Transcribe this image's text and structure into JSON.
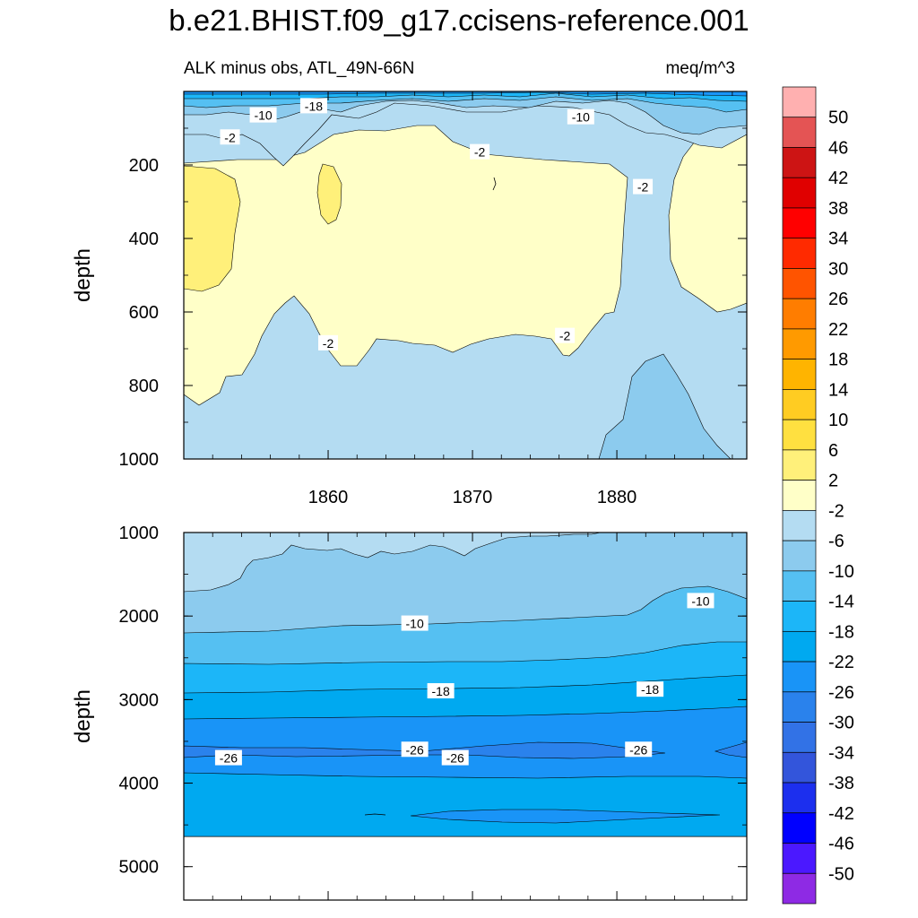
{
  "title": "b.e21.BHIST.f09_g17.ccisens-reference.001",
  "chart_data": [
    {
      "type": "contour",
      "panel": "upper",
      "left_string": "ALK minus obs, ATL_49N-66N",
      "right_string": "meq/m^3",
      "xlabel": "",
      "ylabel": "depth",
      "xlim": [
        1850,
        1889
      ],
      "ylim": [
        1000,
        0
      ],
      "x_ticks": [
        1860,
        1870,
        1880
      ],
      "x_tick_labels": [
        "1860",
        "1870",
        "1880"
      ],
      "y_ticks": [
        200,
        400,
        600,
        800,
        1000
      ],
      "y_tick_labels": [
        "200",
        "400",
        "600",
        "800",
        "1000"
      ],
      "contour_labels": [
        {
          "text": "-18",
          "x": 1859.0,
          "y": 40
        },
        {
          "text": "-10",
          "x": 1855.5,
          "y": 65
        },
        {
          "text": "-10",
          "x": 1877.5,
          "y": 70
        },
        {
          "text": "-2",
          "x": 1853.2,
          "y": 125
        },
        {
          "text": "-2",
          "x": 1870.5,
          "y": 165
        },
        {
          "text": "-2",
          "x": 1881.8,
          "y": 260
        },
        {
          "text": "-2",
          "x": 1860.0,
          "y": 685
        },
        {
          "text": "-2",
          "x": 1876.4,
          "y": 665
        }
      ]
    },
    {
      "type": "contour",
      "panel": "lower",
      "left_string": "",
      "right_string": "",
      "xlabel": "",
      "ylabel": "depth",
      "xlim": [
        1850,
        1889
      ],
      "ylim": [
        5400,
        1000
      ],
      "y_ticks": [
        1000,
        2000,
        3000,
        4000,
        5000
      ],
      "y_tick_labels": [
        "1000",
        "2000",
        "3000",
        "4000",
        "5000"
      ],
      "missing_below": 4620,
      "contour_labels": [
        {
          "text": "-10",
          "x": 1866.0,
          "y": 2090
        },
        {
          "text": "-10",
          "x": 1885.8,
          "y": 1820
        },
        {
          "text": "-18",
          "x": 1867.8,
          "y": 2900
        },
        {
          "text": "-18",
          "x": 1882.3,
          "y": 2880
        },
        {
          "text": "-26",
          "x": 1853.1,
          "y": 3700
        },
        {
          "text": "-26",
          "x": 1866.0,
          "y": 3600
        },
        {
          "text": "-26",
          "x": 1868.8,
          "y": 3700
        },
        {
          "text": "-26",
          "x": 1881.5,
          "y": 3600
        }
      ]
    }
  ],
  "colorbar": {
    "labels": [
      "50",
      "46",
      "42",
      "38",
      "34",
      "30",
      "26",
      "22",
      "18",
      "14",
      "10",
      "6",
      "2",
      "-2",
      "-6",
      "-10",
      "-14",
      "-18",
      "-22",
      "-26",
      "-30",
      "-34",
      "-38",
      "-42",
      "-46",
      "-50"
    ],
    "colors": [
      "#ffb0b0",
      "#e45454",
      "#cd1414",
      "#e00000",
      "#ff0000",
      "#ff2a00",
      "#ff5400",
      "#ff7d00",
      "#ff9a00",
      "#ffb400",
      "#ffcc22",
      "#ffe040",
      "#fff07a",
      "#ffffc8",
      "#b4dcf2",
      "#8ccbee",
      "#55c0f2",
      "#1cb6f8",
      "#00a9f0",
      "#1994f7",
      "#2a82ec",
      "#3272e6",
      "#3355db",
      "#1c2fee",
      "#0000ff",
      "#4b18ff",
      "#8e2ae4"
    ]
  }
}
